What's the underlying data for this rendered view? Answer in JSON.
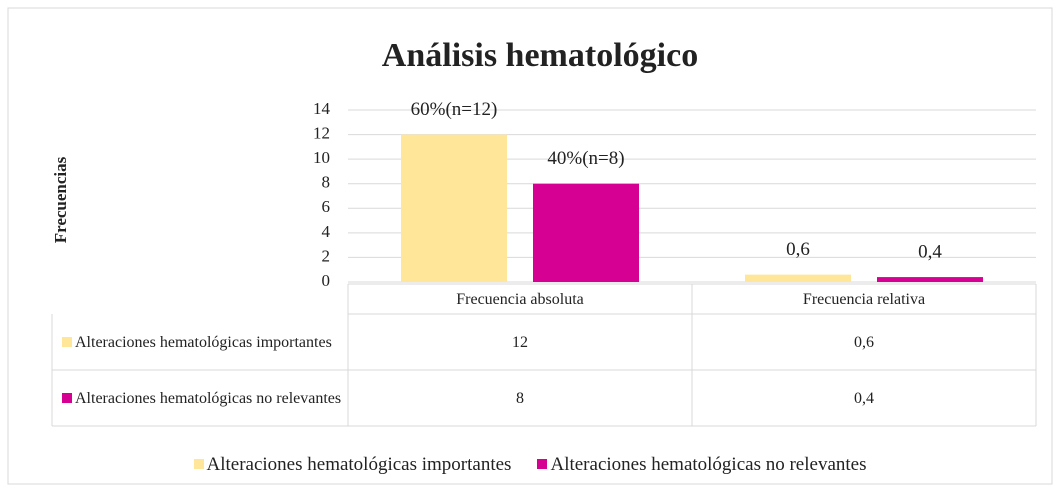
{
  "chart_data": {
    "type": "bar",
    "title": "Análisis hematológico",
    "ylabel": "Frecuencias",
    "categories": [
      "Frecuencia absoluta",
      "Frecuencia relativa"
    ],
    "series": [
      {
        "name": "Alteraciones hematológicas importantes",
        "color": "#ffe699",
        "values": [
          12,
          0.6
        ],
        "value_labels": [
          "60%(n=12)",
          "0,6"
        ],
        "table_labels": [
          "12",
          "0,6"
        ]
      },
      {
        "name": "Alteraciones hematológicas no relevantes",
        "color": "#d60093",
        "values": [
          8,
          0.4
        ],
        "value_labels": [
          "40%(n=8)",
          "0,4"
        ],
        "table_labels": [
          "8",
          "0,4"
        ]
      }
    ],
    "ylim": [
      0,
      14
    ],
    "yticks": [
      0,
      2,
      4,
      6,
      8,
      10,
      12,
      14
    ],
    "grid": true,
    "legend": "bottom"
  }
}
